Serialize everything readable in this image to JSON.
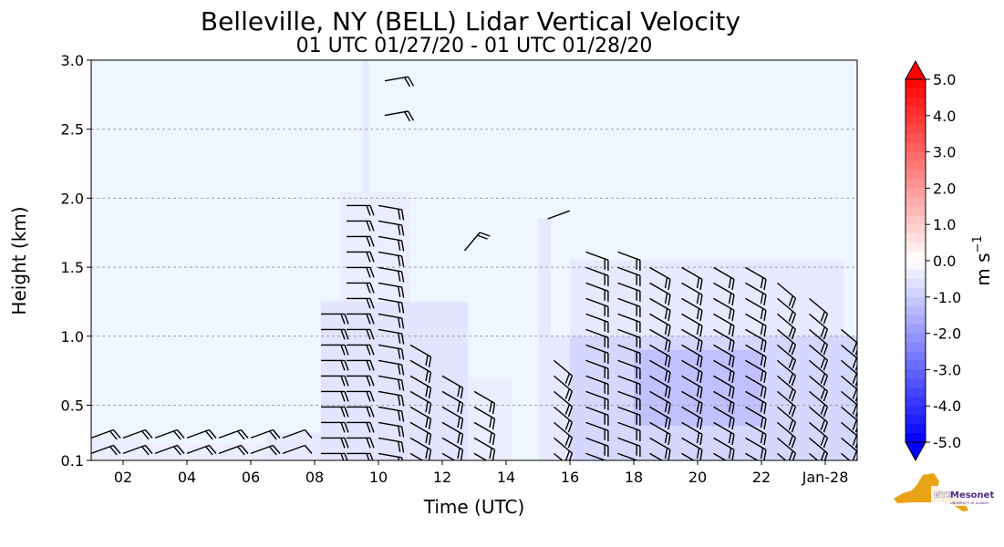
{
  "chart_data": {
    "type": "heatmap",
    "title": "Belleville, NY (BELL) Lidar Vertical Velocity",
    "subtitle": "01 UTC 01/27/20 - 01 UTC 01/28/20",
    "xlabel": "Time (UTC)",
    "ylabel": "Height (km)",
    "xlim": [
      1,
      25
    ],
    "ylim": [
      0.1,
      3.0
    ],
    "x_ticks": [
      {
        "value": 2,
        "label": "02"
      },
      {
        "value": 4,
        "label": "04"
      },
      {
        "value": 6,
        "label": "06"
      },
      {
        "value": 8,
        "label": "08"
      },
      {
        "value": 10,
        "label": "10"
      },
      {
        "value": 12,
        "label": "12"
      },
      {
        "value": 14,
        "label": "14"
      },
      {
        "value": 16,
        "label": "16"
      },
      {
        "value": 18,
        "label": "18"
      },
      {
        "value": 20,
        "label": "20"
      },
      {
        "value": 22,
        "label": "22"
      },
      {
        "value": 24,
        "label": "Jan-28"
      }
    ],
    "y_ticks": [
      {
        "value": 0.1,
        "label": "0.1"
      },
      {
        "value": 0.5,
        "label": "0.5"
      },
      {
        "value": 1.0,
        "label": "1.0"
      },
      {
        "value": 1.5,
        "label": "1.5"
      },
      {
        "value": 2.0,
        "label": "2.0"
      },
      {
        "value": 2.5,
        "label": "2.5"
      },
      {
        "value": 3.0,
        "label": "3.0"
      }
    ],
    "grid": "horizontal dashed",
    "colorbar": {
      "label_base": "m s",
      "label_exp": "−1",
      "range": [
        -5.0,
        5.0
      ],
      "tick_labels": [
        "5.0",
        "4.0",
        "3.0",
        "2.0",
        "1.0",
        "0.0",
        "-1.0",
        "-2.0",
        "-3.0",
        "-4.0",
        "-5.0"
      ],
      "tick_values": [
        5,
        4,
        3,
        2,
        1,
        0,
        -1,
        -2,
        -3,
        -4,
        -5
      ],
      "colors": {
        "max": "#ff0000",
        "zero": "#ffffff",
        "min": "#0000ff"
      }
    },
    "velocity_regions": [
      {
        "x0": 1.0,
        "x1": 2.6,
        "y0": 0.1,
        "y1": 0.27,
        "value": -0.4
      },
      {
        "x0": 2.6,
        "x1": 6.5,
        "y0": 0.1,
        "y1": 0.22,
        "value": -0.4
      },
      {
        "x0": 6.5,
        "x1": 8.2,
        "y0": 0.1,
        "y1": 0.3,
        "value": -0.5
      },
      {
        "x0": 8.2,
        "x1": 12.8,
        "y0": 0.1,
        "y1": 1.25,
        "value": -0.6
      },
      {
        "x0": 8.8,
        "x1": 11.0,
        "y0": 1.25,
        "y1": 2.05,
        "value": -0.4
      },
      {
        "x0": 9.5,
        "x1": 9.7,
        "y0": 2.05,
        "y1": 3.0,
        "value": -0.5
      },
      {
        "x0": 12.8,
        "x1": 14.2,
        "y0": 0.1,
        "y1": 0.7,
        "value": -0.4
      },
      {
        "x0": 15.0,
        "x1": 15.4,
        "y0": 0.1,
        "y1": 1.85,
        "value": -0.5
      },
      {
        "x0": 15.4,
        "x1": 16.0,
        "y0": 0.1,
        "y1": 1.0,
        "value": -0.5
      },
      {
        "x0": 16.0,
        "x1": 25.0,
        "y0": 0.1,
        "y1": 1.0,
        "value": -0.9
      },
      {
        "x0": 16.0,
        "x1": 24.6,
        "y0": 1.0,
        "y1": 1.55,
        "value": -0.5
      },
      {
        "x0": 18.0,
        "x1": 22.0,
        "y0": 0.35,
        "y1": 0.9,
        "value": -1.3
      }
    ],
    "wind_barb_columns": [
      {
        "x": 1.0,
        "y0": 0.15,
        "y1": 0.35,
        "dir": 250,
        "flags": 2
      },
      {
        "x": 2.0,
        "y0": 0.15,
        "y1": 0.35,
        "dir": 250,
        "flags": 2
      },
      {
        "x": 3.0,
        "y0": 0.15,
        "y1": 0.3,
        "dir": 250,
        "flags": 2
      },
      {
        "x": 4.0,
        "y0": 0.15,
        "y1": 0.3,
        "dir": 250,
        "flags": 2
      },
      {
        "x": 5.0,
        "y0": 0.15,
        "y1": 0.3,
        "dir": 250,
        "flags": 2
      },
      {
        "x": 6.0,
        "y0": 0.15,
        "y1": 0.3,
        "dir": 250,
        "flags": 2
      },
      {
        "x": 7.0,
        "y0": 0.15,
        "y1": 0.3,
        "dir": 250,
        "flags": 1
      },
      {
        "x": 8.2,
        "y0": 0.15,
        "y1": 1.2,
        "dir": 270,
        "flags": 2
      },
      {
        "x": 9.0,
        "y0": 0.15,
        "y1": 2.0,
        "dir": 270,
        "flags": 2
      },
      {
        "x": 10.0,
        "y0": 0.15,
        "y1": 2.0,
        "dir": 280,
        "flags": 2
      },
      {
        "x": 11.0,
        "y0": 0.15,
        "y1": 1.0,
        "dir": 300,
        "flags": 2
      },
      {
        "x": 12.0,
        "y0": 0.15,
        "y1": 0.8,
        "dir": 300,
        "flags": 2
      },
      {
        "x": 13.0,
        "y0": 0.15,
        "y1": 0.6,
        "dir": 300,
        "flags": 2
      },
      {
        "x": 15.5,
        "y0": 0.15,
        "y1": 0.9,
        "dir": 310,
        "flags": 2
      },
      {
        "x": 16.5,
        "y0": 0.15,
        "y1": 1.7,
        "dir": 290,
        "flags": 2
      },
      {
        "x": 17.5,
        "y0": 0.15,
        "y1": 1.7,
        "dir": 290,
        "flags": 2
      },
      {
        "x": 18.5,
        "y0": 0.15,
        "y1": 1.6,
        "dir": 300,
        "flags": 2
      },
      {
        "x": 19.5,
        "y0": 0.15,
        "y1": 1.6,
        "dir": 300,
        "flags": 2
      },
      {
        "x": 20.5,
        "y0": 0.15,
        "y1": 1.5,
        "dir": 300,
        "flags": 2
      },
      {
        "x": 21.5,
        "y0": 0.15,
        "y1": 1.5,
        "dir": 300,
        "flags": 2
      },
      {
        "x": 22.5,
        "y0": 0.15,
        "y1": 1.4,
        "dir": 310,
        "flags": 2
      },
      {
        "x": 23.5,
        "y0": 0.15,
        "y1": 1.3,
        "dir": 310,
        "flags": 2
      },
      {
        "x": 24.5,
        "y0": 0.15,
        "y1": 1.1,
        "dir": 310,
        "flags": 2
      }
    ],
    "upper_barbs": [
      {
        "x": 10.2,
        "y": 2.85,
        "dir": 260,
        "flags": 2
      },
      {
        "x": 10.2,
        "y": 2.6,
        "dir": 260,
        "flags": 2
      },
      {
        "x": 12.7,
        "y": 1.62,
        "dir": 220,
        "flags": 2
      },
      {
        "x": 15.3,
        "y": 1.85,
        "dir": 250,
        "flags": 0
      }
    ]
  },
  "logo": {
    "text_main": "Mesonet",
    "text_prefix": "NYS",
    "text_sub": "UNIVERSITY AT ALBANY",
    "state_color": "#e8a317",
    "text_color": "#4b2e83"
  }
}
